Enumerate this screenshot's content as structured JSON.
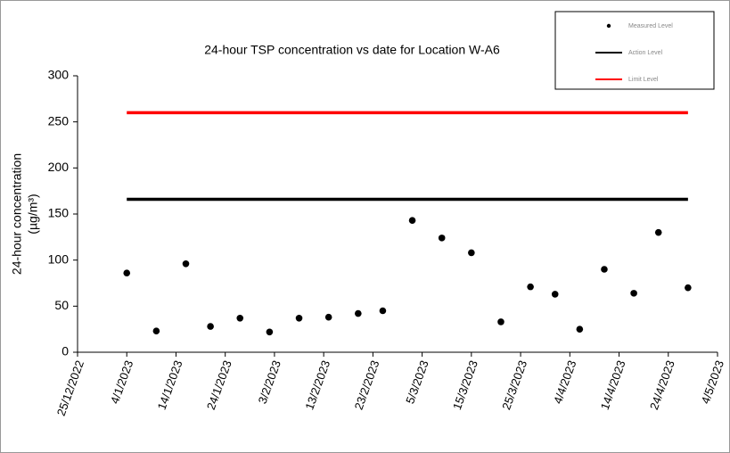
{
  "chart_data": {
    "type": "scatter",
    "title": "24-hour TSP concentration vs date for Location W-A6",
    "ylabel": [
      "24-hour concentration",
      "(µg/m³)"
    ],
    "xlim": [
      "2022-12-25",
      "2023-05-04"
    ],
    "xticks": [
      {
        "value": "2022-12-25",
        "label": "25/12/2022"
      },
      {
        "value": "2023-01-04",
        "label": "4/1/2023"
      },
      {
        "value": "2023-01-14",
        "label": "14/1/2023"
      },
      {
        "value": "2023-01-24",
        "label": "24/1/2023"
      },
      {
        "value": "2023-02-03",
        "label": "3/2/2023"
      },
      {
        "value": "2023-02-13",
        "label": "13/2/2023"
      },
      {
        "value": "2023-02-23",
        "label": "23/2/2023"
      },
      {
        "value": "2023-03-05",
        "label": "5/3/2023"
      },
      {
        "value": "2023-03-15",
        "label": "15/3/2023"
      },
      {
        "value": "2023-03-25",
        "label": "25/3/2023"
      },
      {
        "value": "2023-04-04",
        "label": "4/4/2023"
      },
      {
        "value": "2023-04-14",
        "label": "14/4/2023"
      },
      {
        "value": "2023-04-24",
        "label": "24/4/2023"
      },
      {
        "value": "2023-05-04",
        "label": "4/5/2023"
      }
    ],
    "ylim": [
      0,
      300
    ],
    "yticks": [
      0,
      50,
      100,
      150,
      200,
      250,
      300
    ],
    "grid": false,
    "legend": "top-right",
    "series": [
      {
        "name": "Measured Level",
        "kind": "marker",
        "color": "#000000",
        "x": [
          "2023-01-04",
          "2023-01-10",
          "2023-01-16",
          "2023-01-21",
          "2023-01-27",
          "2023-02-02",
          "2023-02-08",
          "2023-02-14",
          "2023-02-20",
          "2023-02-25",
          "2023-03-03",
          "2023-03-09",
          "2023-03-15",
          "2023-03-21",
          "2023-03-27",
          "2023-04-01",
          "2023-04-06",
          "2023-04-11",
          "2023-04-17",
          "2023-04-22",
          "2023-04-28"
        ],
        "values": [
          86,
          23,
          96,
          28,
          37,
          22,
          37,
          38,
          42,
          45,
          143,
          124,
          108,
          33,
          71,
          63,
          25,
          90,
          64,
          130,
          70
        ]
      },
      {
        "name": "Action Level",
        "kind": "line",
        "color": "#000000",
        "x": [
          "2023-01-04",
          "2023-04-28"
        ],
        "values": [
          166,
          166
        ]
      },
      {
        "name": "Limit Level",
        "kind": "line",
        "color": "#ff0000",
        "x": [
          "2023-01-04",
          "2023-04-28"
        ],
        "values": [
          260,
          260
        ]
      }
    ]
  }
}
